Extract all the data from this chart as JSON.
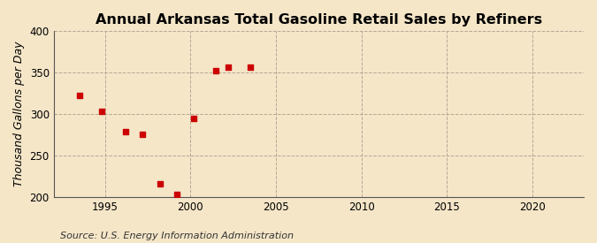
{
  "title": "Annual Arkansas Total Gasoline Retail Sales by Refiners",
  "ylabel": "Thousand Gallons per Day",
  "source": "Source: U.S. Energy Information Administration",
  "x_data": [
    1993.5,
    1994.8,
    1996.2,
    1997.2,
    1998.2,
    1999.2,
    2000.2,
    2001.5,
    2002.2,
    2003.5
  ],
  "y_data": [
    323,
    303,
    279,
    276,
    216,
    203,
    295,
    352,
    357,
    357
  ],
  "xlim": [
    1992,
    2023
  ],
  "ylim": [
    200,
    400
  ],
  "yticks": [
    200,
    250,
    300,
    350,
    400
  ],
  "xticks": [
    1995,
    2000,
    2005,
    2010,
    2015,
    2020
  ],
  "marker_color": "#cc0000",
  "marker": "s",
  "marker_size": 18,
  "bg_color": "#f5e6c8",
  "plot_bg_color": "#f5e6c8",
  "grid_color": "#b0a090",
  "title_fontsize": 11.5,
  "label_fontsize": 9,
  "tick_fontsize": 8.5,
  "source_fontsize": 8
}
